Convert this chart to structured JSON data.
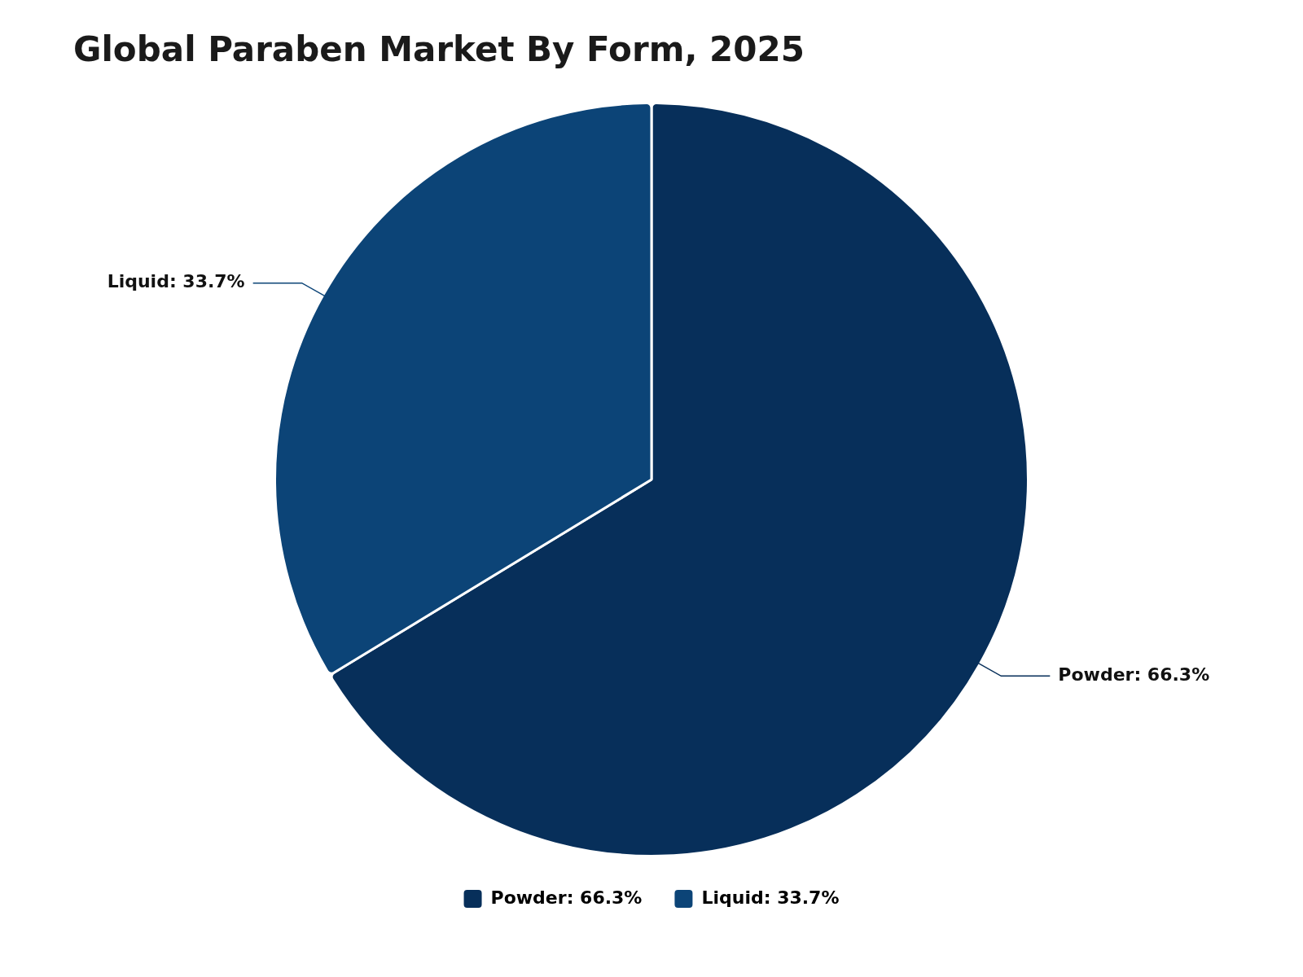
{
  "chart_data": {
    "type": "pie",
    "title": "Global Paraben Market By Form, 2025",
    "categories": [
      "Powder",
      "Liquid"
    ],
    "values": [
      66.3,
      33.7
    ],
    "value_labels": [
      "66.3%",
      "33.7%"
    ],
    "colors": [
      "#072f5a",
      "#0c4477"
    ],
    "legend": "bottom"
  }
}
